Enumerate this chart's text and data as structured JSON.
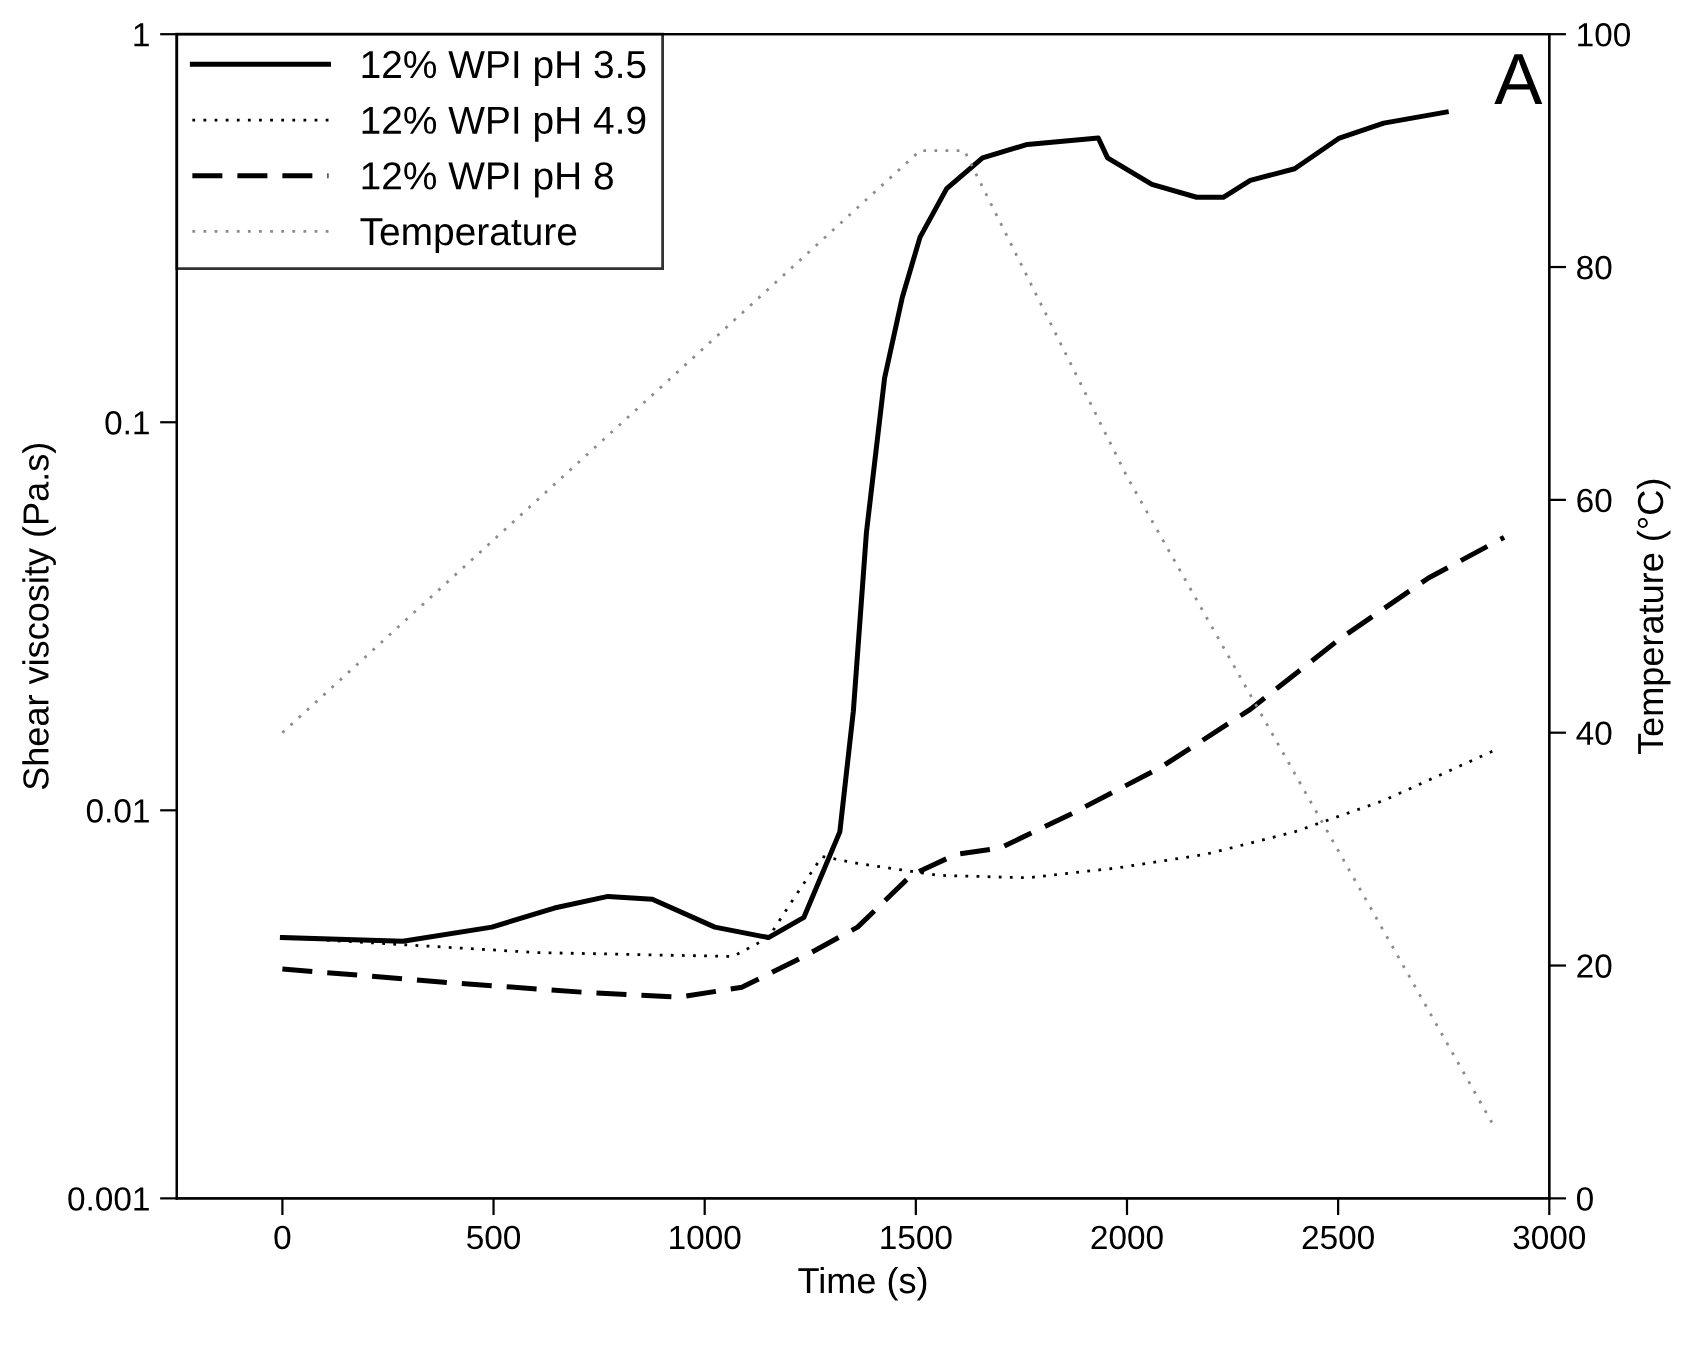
{
  "chart_data": {
    "type": "line",
    "xlabel": "Time (s)",
    "ylabel": "Shear viscosity (Pa.s)",
    "y2label": "Temperature (°C)",
    "annotations": [
      "A"
    ],
    "log": "y",
    "grid": false,
    "legend": "top left",
    "xlim": [
      -250,
      3000
    ],
    "xticks": [
      0,
      500,
      1000,
      1500,
      2000,
      2500,
      3000
    ],
    "ylim": [
      0.001,
      1
    ],
    "yticks": [
      0.001,
      0.01,
      0.1,
      1
    ],
    "y2lim": [
      0,
      100
    ],
    "y2ticks": [
      0,
      20,
      40,
      60,
      80,
      100
    ],
    "series": [
      {
        "name": "12% WPI pH 3.5",
        "color": "#000000",
        "line_style": "solid",
        "x": [
          0,
          285,
          496,
          644,
          771,
          876,
          1024,
          1151,
          1235,
          1320,
          1352,
          1383,
          1426,
          1468,
          1510,
          1573,
          1658,
          1764,
          1932,
          1954,
          2059,
          2165,
          2228,
          2292,
          2397,
          2503,
          2608,
          2756
        ],
        "values": [
          0.0047,
          0.0046,
          0.005,
          0.0056,
          0.006,
          0.0059,
          0.005,
          0.0047,
          0.0053,
          0.0088,
          0.018,
          0.052,
          0.13,
          0.21,
          0.3,
          0.4,
          0.48,
          0.52,
          0.54,
          0.48,
          0.41,
          0.38,
          0.38,
          0.42,
          0.45,
          0.54,
          0.59,
          0.63
        ]
      },
      {
        "name": "12% WPI pH 4.9",
        "color": "#000000",
        "line_style": "dotted",
        "x": [
          0,
          602,
          1067,
          1151,
          1214,
          1278,
          1362,
          1552,
          1764,
          1975,
          2186,
          2397,
          2608,
          2872
        ],
        "values": [
          0.0047,
          0.0043,
          0.0042,
          0.0047,
          0.006,
          0.0076,
          0.0073,
          0.0068,
          0.0067,
          0.0071,
          0.0077,
          0.0088,
          0.0106,
          0.0143
        ]
      },
      {
        "name": "12% WPI pH 8",
        "color": "#000000",
        "line_style": "dashed",
        "x": [
          0,
          391,
          708,
          940,
          1088,
          1235,
          1362,
          1489,
          1595,
          1700,
          1869,
          2080,
          2292,
          2503,
          2714,
          2893
        ],
        "values": [
          0.0039,
          0.0036,
          0.0034,
          0.0033,
          0.0035,
          0.0042,
          0.005,
          0.0068,
          0.0077,
          0.008,
          0.0098,
          0.0129,
          0.0182,
          0.0276,
          0.0397,
          0.0505
        ]
      },
      {
        "name": "Temperature",
        "color": "#8c8c8c",
        "line_style": "dotted",
        "axis": "y2",
        "x": [
          0,
          1510,
          1615,
          2000,
          2872
        ],
        "values": [
          40,
          90,
          90,
          62,
          6
        ]
      }
    ]
  }
}
